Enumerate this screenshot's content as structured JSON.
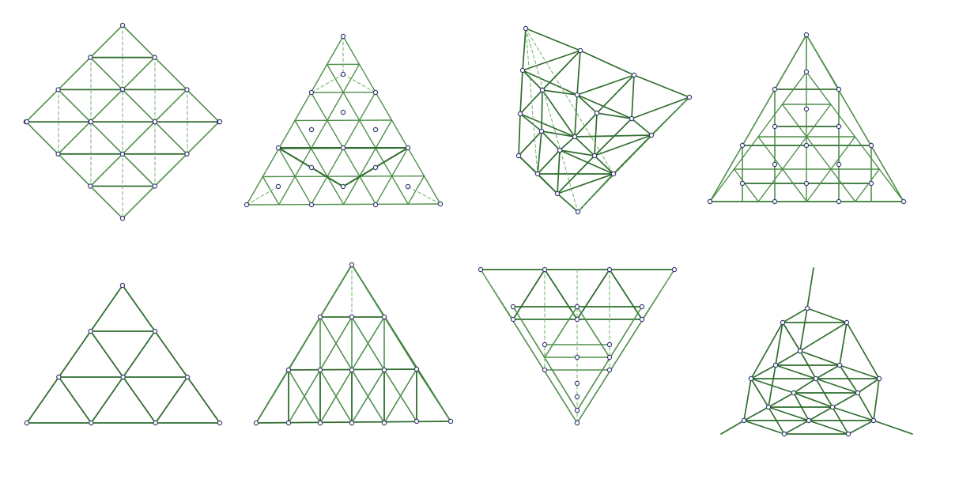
{
  "colors": {
    "edge": "#4f8f4a",
    "edge_dark": "#2f6e2f",
    "dashed": "#6fae6a",
    "node_fill": "#ffffff",
    "node_stroke": "#3b3a7a"
  },
  "figures": [
    {
      "id": "fig-1-diamond-lattice"
    },
    {
      "id": "fig-2-triangle-nested-star"
    },
    {
      "id": "fig-3-tilted-tetrahedral-lattice"
    },
    {
      "id": "fig-4-triangle-star-lattice"
    },
    {
      "id": "fig-5-subdivided-triangle"
    },
    {
      "id": "fig-6-triangle-prism-lattice"
    },
    {
      "id": "fig-7-inverted-triangle-lattice"
    },
    {
      "id": "fig-8-cluster-lattice"
    }
  ]
}
